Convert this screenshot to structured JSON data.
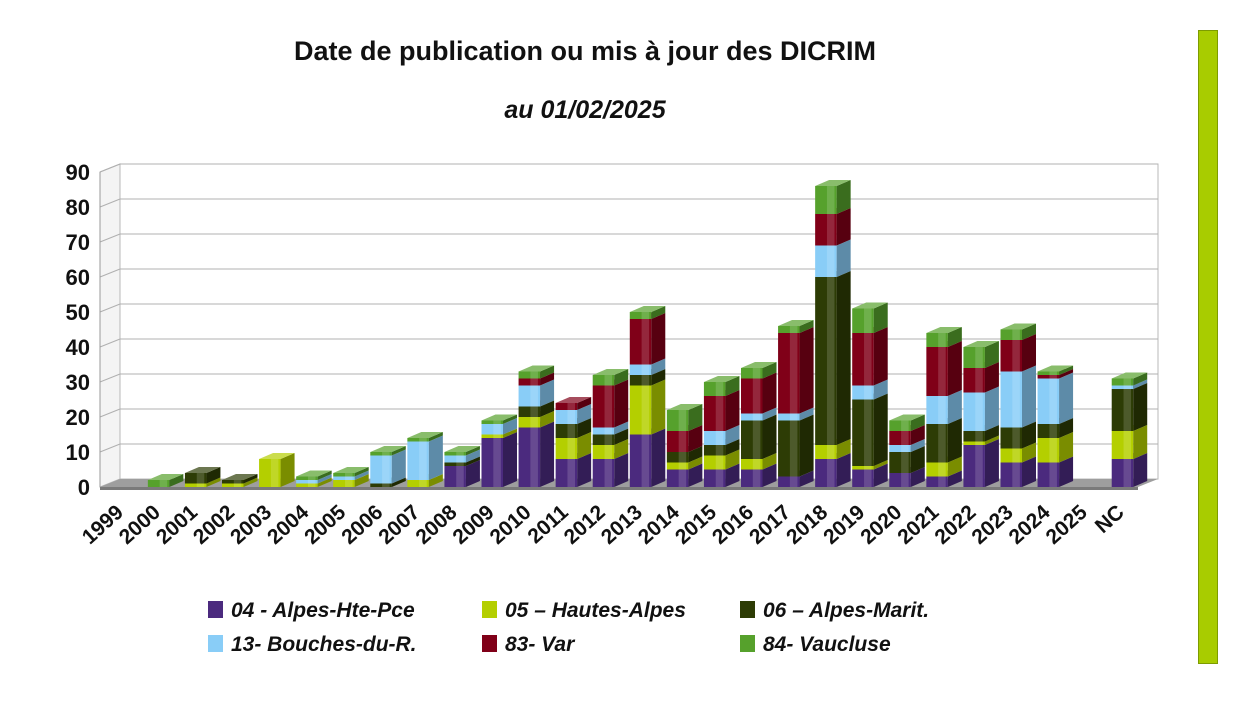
{
  "chart_data": {
    "type": "bar",
    "stacked": true,
    "title": "Date de publication ou mis à jour des DICRIM",
    "subtitle": "au 01/02/2025",
    "categories": [
      "1999",
      "2000",
      "2001",
      "2002",
      "2003",
      "2004",
      "2005",
      "2006",
      "2007",
      "2008",
      "2009",
      "2010",
      "2011",
      "2012",
      "2013",
      "2014",
      "2015",
      "2016",
      "2017",
      "2018",
      "2019",
      "2020",
      "2021",
      "2022",
      "2023",
      "2024",
      "2025",
      "NC"
    ],
    "ylim": [
      0,
      90
    ],
    "yticks": [
      0,
      10,
      20,
      30,
      40,
      50,
      60,
      70,
      80,
      90
    ],
    "grid": true,
    "legend_position": "bottom",
    "series": [
      {
        "name": "04 - Alpes-Hte-Pce",
        "color": "#4b2a7e",
        "values": [
          0,
          0,
          0,
          0,
          0,
          0,
          0,
          0,
          0,
          6,
          14,
          17,
          8,
          8,
          15,
          5,
          5,
          5,
          3,
          8,
          5,
          4,
          3,
          12,
          7,
          7,
          0,
          8
        ]
      },
      {
        "name": "05 – Hautes-Alpes",
        "color": "#b4cf00",
        "values": [
          0,
          0,
          1,
          1,
          8,
          1,
          2,
          0,
          2,
          0,
          1,
          3,
          6,
          4,
          14,
          2,
          4,
          3,
          0,
          4,
          1,
          0,
          4,
          1,
          4,
          7,
          0,
          8
        ]
      },
      {
        "name": "06 – Alpes-Marit.",
        "color": "#2d3c05",
        "values": [
          0,
          0,
          3,
          1,
          0,
          0,
          0,
          1,
          0,
          1,
          0,
          3,
          4,
          3,
          3,
          3,
          3,
          11,
          16,
          48,
          19,
          6,
          11,
          3,
          6,
          4,
          0,
          12
        ]
      },
      {
        "name": "13- Bouches-du-R.",
        "color": "#89cdf7",
        "values": [
          0,
          0,
          0,
          0,
          0,
          1,
          1,
          8,
          11,
          2,
          3,
          6,
          4,
          2,
          3,
          0,
          4,
          2,
          2,
          9,
          4,
          2,
          8,
          11,
          16,
          13,
          0,
          1
        ]
      },
      {
        "name": "83- Var",
        "color": "#800018",
        "values": [
          0,
          0,
          0,
          0,
          0,
          0,
          0,
          0,
          0,
          0,
          0,
          2,
          2,
          12,
          13,
          6,
          10,
          10,
          23,
          9,
          15,
          4,
          14,
          7,
          9,
          1,
          0,
          0
        ]
      },
      {
        "name": "84- Vaucluse",
        "color": "#56a12c",
        "values": [
          0,
          2,
          0,
          0,
          0,
          1,
          1,
          1,
          1,
          1,
          1,
          2,
          0,
          3,
          2,
          6,
          4,
          3,
          2,
          8,
          7,
          3,
          4,
          6,
          3,
          1,
          0,
          2
        ]
      }
    ]
  }
}
